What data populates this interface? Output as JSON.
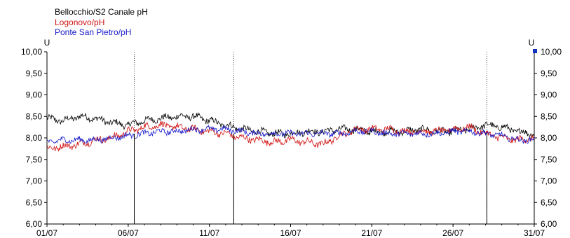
{
  "chart_data": {
    "type": "line",
    "y_unit_left": "U",
    "y_unit_right": "U",
    "ylim": [
      6.0,
      10.0
    ],
    "yticks": [
      "6,00",
      "6,50",
      "7,00",
      "7,50",
      "8,00",
      "8,50",
      "9,00",
      "9,50",
      "10,00"
    ],
    "xlim": [
      "2024-07-01",
      "2024-07-31"
    ],
    "xticks": [
      "01/07",
      "06/07",
      "11/07",
      "16/07",
      "21/07",
      "26/07",
      "31/07"
    ],
    "grid": false,
    "legend_position": "top-left",
    "event_markers_x": [
      "2024-07-06 09:00",
      "2024-07-12 12:00",
      "2024-07-28 02:00"
    ],
    "marker_dips": [
      {
        "x": "2024-07-06 09:00",
        "y_min": 6.0
      },
      {
        "x": "2024-07-12 12:00",
        "y_min": 6.0
      },
      {
        "x": "2024-07-28 02:00",
        "y_min": 6.0
      }
    ],
    "series": [
      {
        "name": "Bellocchio/S2 Canale pH",
        "color": "#000000",
        "x": [
          "2024-07-01",
          "2024-07-02",
          "2024-07-03",
          "2024-07-04",
          "2024-07-05",
          "2024-07-06",
          "2024-07-07",
          "2024-07-08",
          "2024-07-09",
          "2024-07-10",
          "2024-07-11",
          "2024-07-12",
          "2024-07-13",
          "2024-07-14",
          "2024-07-15",
          "2024-07-16",
          "2024-07-17",
          "2024-07-18",
          "2024-07-19",
          "2024-07-20",
          "2024-07-21",
          "2024-07-22",
          "2024-07-23",
          "2024-07-24",
          "2024-07-25",
          "2024-07-26",
          "2024-07-27",
          "2024-07-28",
          "2024-07-29",
          "2024-07-30",
          "2024-07-31"
        ],
        "y": [
          8.45,
          8.4,
          8.5,
          8.45,
          8.35,
          8.3,
          8.4,
          8.45,
          8.5,
          8.5,
          8.4,
          8.3,
          8.2,
          8.15,
          8.1,
          8.1,
          8.15,
          8.15,
          8.2,
          8.2,
          8.15,
          8.15,
          8.15,
          8.2,
          8.15,
          8.15,
          8.2,
          8.3,
          8.25,
          8.15,
          8.1
        ]
      },
      {
        "name": "Logonovo/pH",
        "color": "#d01010",
        "x": [
          "2024-07-01",
          "2024-07-02",
          "2024-07-03",
          "2024-07-04",
          "2024-07-05",
          "2024-07-06",
          "2024-07-07",
          "2024-07-08",
          "2024-07-09",
          "2024-07-10",
          "2024-07-11",
          "2024-07-12",
          "2024-07-13",
          "2024-07-14",
          "2024-07-15",
          "2024-07-16",
          "2024-07-17",
          "2024-07-18",
          "2024-07-19",
          "2024-07-20",
          "2024-07-21",
          "2024-07-22",
          "2024-07-23",
          "2024-07-24",
          "2024-07-25",
          "2024-07-26",
          "2024-07-27",
          "2024-07-28",
          "2024-07-29",
          "2024-07-30",
          "2024-07-31"
        ],
        "y": [
          7.75,
          7.8,
          7.85,
          7.95,
          8.0,
          8.15,
          8.25,
          8.3,
          8.25,
          8.2,
          8.15,
          8.1,
          8.0,
          7.95,
          7.9,
          7.95,
          7.9,
          7.85,
          8.05,
          8.2,
          8.2,
          8.2,
          8.15,
          8.15,
          8.15,
          8.2,
          8.25,
          8.1,
          8.0,
          7.95,
          8.0
        ]
      },
      {
        "name": "Ponte San Pietro/pH",
        "color": "#1a1ac8",
        "x": [
          "2024-07-01",
          "2024-07-02",
          "2024-07-03",
          "2024-07-04",
          "2024-07-05",
          "2024-07-06",
          "2024-07-07",
          "2024-07-08",
          "2024-07-09",
          "2024-07-10",
          "2024-07-11",
          "2024-07-12",
          "2024-07-13",
          "2024-07-14",
          "2024-07-15",
          "2024-07-16",
          "2024-07-17",
          "2024-07-18",
          "2024-07-19",
          "2024-07-20",
          "2024-07-21",
          "2024-07-22",
          "2024-07-23",
          "2024-07-24",
          "2024-07-25",
          "2024-07-26",
          "2024-07-27",
          "2024-07-28",
          "2024-07-29",
          "2024-07-30",
          "2024-07-31"
        ],
        "y": [
          7.9,
          7.95,
          7.95,
          7.95,
          8.0,
          8.05,
          8.1,
          8.15,
          8.15,
          8.2,
          8.2,
          8.2,
          8.15,
          8.1,
          8.1,
          8.1,
          8.1,
          8.1,
          8.1,
          8.15,
          8.15,
          8.1,
          8.1,
          8.1,
          8.1,
          8.15,
          8.15,
          8.1,
          8.05,
          7.95,
          7.95
        ]
      }
    ]
  }
}
